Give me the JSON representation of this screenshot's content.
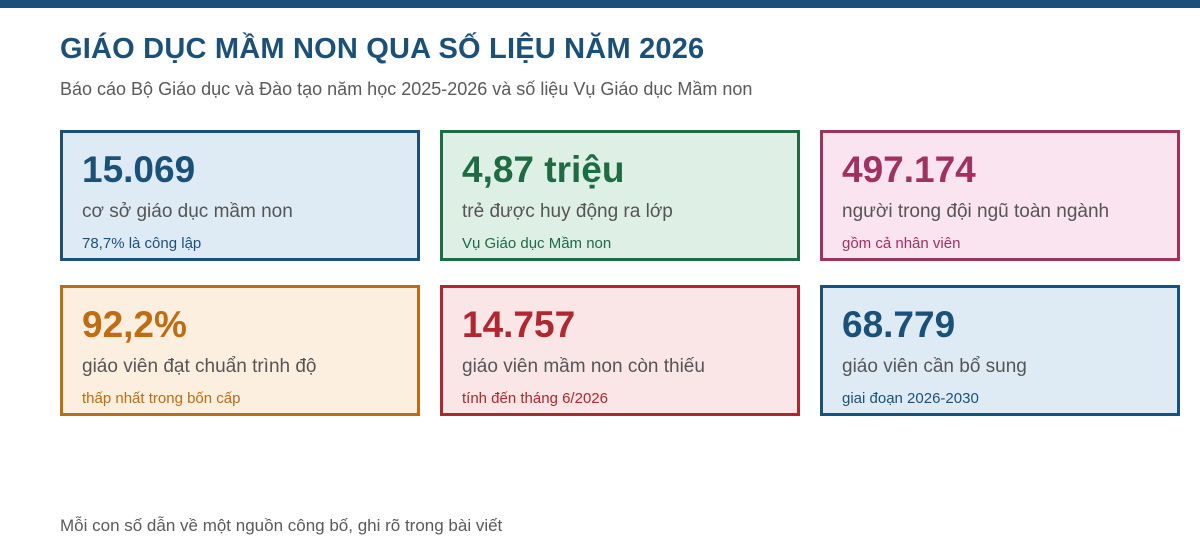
{
  "header": {
    "title": "GIÁO DỤC MẦM NON QUA SỐ LIỆU NĂM 2026",
    "subtitle": "Báo cáo Bộ Giáo dục và Đào tạo năm học 2025-2026 và số liệu Vụ Giáo dục Mầm non"
  },
  "colors": {
    "brand": "#1b5179"
  },
  "cards": [
    {
      "value": "15.069",
      "label": "cơ sở giáo dục mầm non",
      "note": "78,7% là công lập",
      "accent": "#1b5179",
      "background": "#deebf5"
    },
    {
      "value": "4,87 triệu",
      "label": "trẻ được huy động ra lớp",
      "note": "Vụ Giáo dục Mầm non",
      "accent": "#1e6b44",
      "background": "#deefe6"
    },
    {
      "value": "497.174",
      "label": "người trong đội ngũ toàn ngành",
      "note": "gồm cả nhân viên",
      "accent": "#a0325e",
      "background": "#fae4ef"
    },
    {
      "value": "92,2%",
      "label": "giáo viên đạt chuẩn trình độ",
      "note": "thấp nhất trong bốn cấp",
      "accent": "#c06c12",
      "background": "#fcefe0"
    },
    {
      "value": "14.757",
      "label": "giáo viên mầm non còn thiếu",
      "note": "tính đến tháng 6/2026",
      "accent": "#b0272f",
      "background": "#fae6e7"
    },
    {
      "value": "68.779",
      "label": "giáo viên cần bổ sung",
      "note": "giai đoạn 2026-2030",
      "accent": "#1b5179",
      "background": "#deebf5"
    }
  ],
  "footer": {
    "note": "Mỗi con số dẫn về một nguồn công bố, ghi rõ trong bài viết"
  }
}
